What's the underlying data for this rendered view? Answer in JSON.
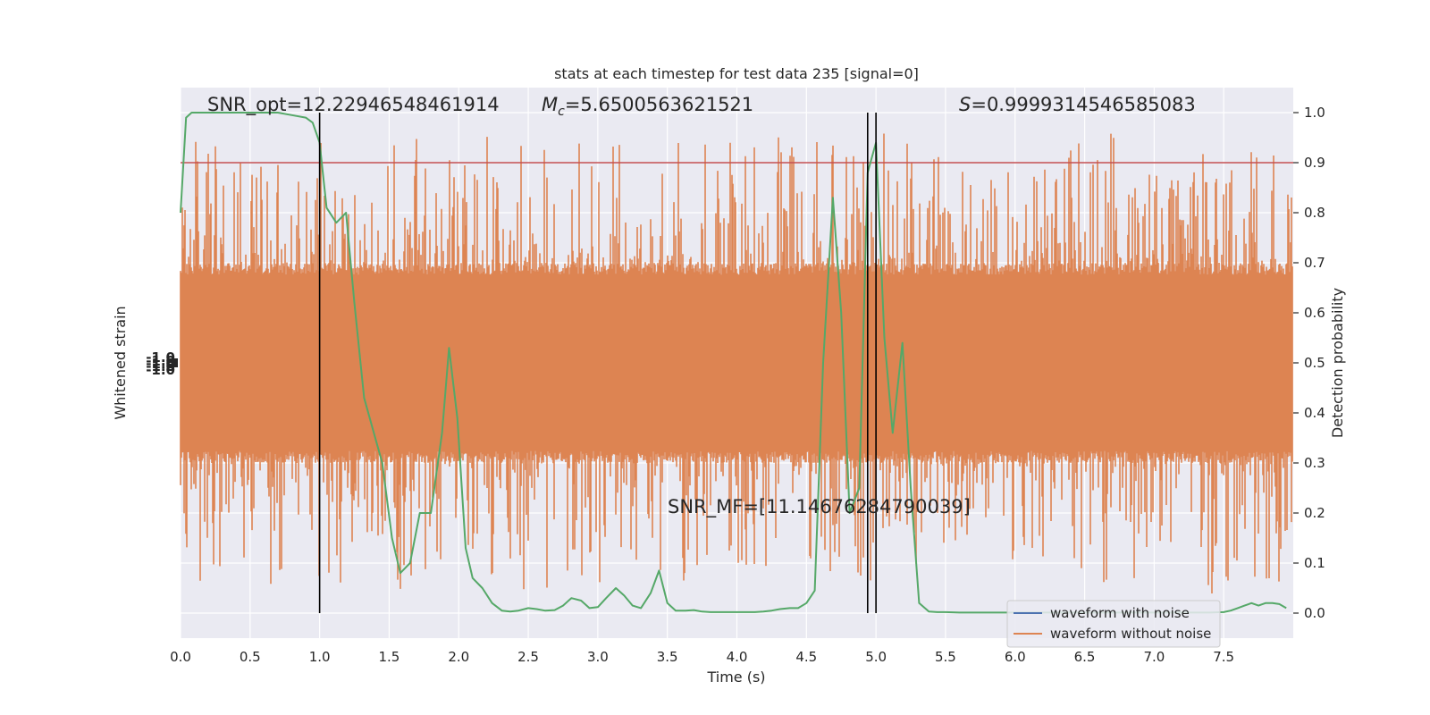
{
  "chart_data": {
    "type": "line",
    "title": "stats at each timestep for test data 235 [signal=0]",
    "xlabel": "Time (s)",
    "ylabel_left": "Whitened strain",
    "ylabel_right": "Detection probability",
    "xlim": [
      0.0,
      8.0
    ],
    "ylim_right": [
      -0.05,
      1.05
    ],
    "grid": true,
    "x_ticks": [
      0.0,
      0.5,
      1.0,
      1.5,
      2.0,
      2.5,
      3.0,
      3.5,
      4.0,
      4.5,
      5.0,
      5.5,
      6.0,
      6.5,
      7.0,
      7.5
    ],
    "x_tick_labels": [
      "0.0",
      "0.5",
      "1.0",
      "1.5",
      "2.0",
      "2.5",
      "3.0",
      "3.5",
      "4.0",
      "4.5",
      "5.0",
      "5.5",
      "6.0",
      "6.5",
      "7.0",
      "7.5"
    ],
    "y_ticks_right": [
      0.0,
      0.1,
      0.2,
      0.3,
      0.4,
      0.5,
      0.6,
      0.7,
      0.8,
      0.9,
      1.0
    ],
    "y_tick_labels_right": [
      "0.0",
      "0.1",
      "0.2",
      "0.3",
      "0.4",
      "0.5",
      "0.6",
      "0.7",
      "0.8",
      "0.9",
      "1.0"
    ],
    "threshold": 0.9,
    "vertical_lines": [
      1.0,
      4.94,
      5.0
    ],
    "annotations": {
      "snr_opt": "SNR_opt=12.22946548461914",
      "mc_symbol": "M",
      "mc_sub": "c",
      "mc_value": "=5.6500563621521",
      "s_symbol": "S",
      "s_value": "=0.9999314546585083",
      "snr_mf": "SNR_MF=[11.14676284790039]"
    },
    "left_axis_tick_glyph": "-1.0",
    "legend": {
      "location": "lower right",
      "entries": [
        {
          "label": "waveform with noise",
          "color": "#4c72b0"
        },
        {
          "label": "waveform without noise",
          "color": "#dd8452"
        }
      ]
    },
    "colors": {
      "noise_waveform": "#dd8452",
      "detection_probability": "#55a868",
      "threshold": "#c44e52",
      "vertical_lines": "#000000",
      "plot_background": "#eaeaf2",
      "grid": "#ffffff"
    },
    "series": [
      {
        "name": "waveform without noise",
        "kind": "band",
        "band_center": 0.5,
        "band_core_half_width": 0.2,
        "band_peak_half_width": 0.45
      },
      {
        "kind": "probability",
        "x": [
          0.0,
          0.04,
          0.08,
          0.12,
          0.16,
          0.2,
          0.3,
          0.4,
          0.5,
          0.6,
          0.7,
          0.8,
          0.9,
          0.95,
          1.0,
          1.05,
          1.12,
          1.19,
          1.25,
          1.32,
          1.39,
          1.45,
          1.52,
          1.58,
          1.65,
          1.72,
          1.8,
          1.88,
          1.93,
          1.99,
          2.05,
          2.1,
          2.17,
          2.24,
          2.31,
          2.37,
          2.43,
          2.5,
          2.56,
          2.62,
          2.69,
          2.75,
          2.81,
          2.88,
          2.94,
          3.0,
          3.06,
          3.13,
          3.19,
          3.25,
          3.31,
          3.38,
          3.44,
          3.5,
          3.56,
          3.63,
          3.69,
          3.75,
          3.81,
          3.88,
          3.94,
          4.0,
          4.06,
          4.13,
          4.19,
          4.25,
          4.31,
          4.38,
          4.44,
          4.5,
          4.56,
          4.62,
          4.69,
          4.75,
          4.81,
          4.88,
          4.94,
          5.0,
          5.06,
          5.12,
          5.19,
          5.25,
          5.31,
          5.38,
          5.44,
          5.5,
          5.6,
          5.7,
          5.8,
          5.9,
          6.0,
          6.1,
          6.2,
          6.3,
          6.4,
          6.5,
          6.6,
          6.7,
          6.8,
          6.9,
          7.0,
          7.1,
          7.2,
          7.3,
          7.4,
          7.5,
          7.55,
          7.6,
          7.65,
          7.7,
          7.75,
          7.8,
          7.85,
          7.9,
          7.95
        ],
        "y": [
          0.8,
          0.99,
          1.0,
          1.0,
          1.0,
          1.0,
          1.0,
          1.0,
          1.0,
          1.0,
          1.0,
          0.995,
          0.99,
          0.98,
          0.94,
          0.81,
          0.78,
          0.8,
          0.62,
          0.43,
          0.36,
          0.3,
          0.15,
          0.08,
          0.1,
          0.2,
          0.2,
          0.36,
          0.53,
          0.39,
          0.13,
          0.07,
          0.05,
          0.02,
          0.005,
          0.003,
          0.005,
          0.01,
          0.008,
          0.005,
          0.006,
          0.015,
          0.03,
          0.025,
          0.01,
          0.012,
          0.03,
          0.05,
          0.035,
          0.015,
          0.01,
          0.04,
          0.085,
          0.02,
          0.005,
          0.005,
          0.006,
          0.003,
          0.002,
          0.002,
          0.002,
          0.002,
          0.002,
          0.002,
          0.003,
          0.005,
          0.008,
          0.01,
          0.01,
          0.02,
          0.045,
          0.5,
          0.83,
          0.6,
          0.2,
          0.25,
          0.88,
          0.94,
          0.55,
          0.36,
          0.54,
          0.25,
          0.02,
          0.003,
          0.002,
          0.002,
          0.001,
          0.001,
          0.001,
          0.001,
          0.001,
          0.001,
          0.001,
          0.001,
          0.001,
          0.001,
          0.001,
          0.001,
          0.001,
          0.001,
          0.001,
          0.001,
          0.001,
          0.001,
          0.001,
          0.002,
          0.005,
          0.01,
          0.015,
          0.02,
          0.015,
          0.02,
          0.02,
          0.018,
          0.01
        ]
      }
    ]
  }
}
